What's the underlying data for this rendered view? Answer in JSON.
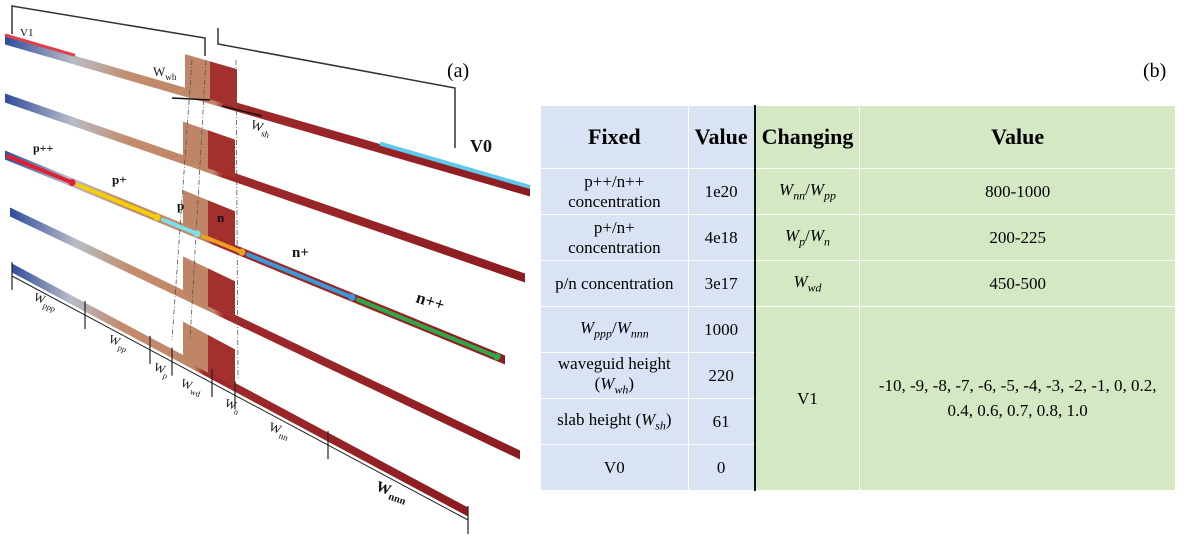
{
  "panel_a": {
    "label": "(a)",
    "labels": [
      "V1",
      {
        "base": "W",
        "sub": "wh"
      },
      {
        "base": "W",
        "sub": "sh"
      },
      "V0",
      "p++",
      "p+",
      "p",
      "n",
      "n+",
      "n++",
      {
        "base": "W",
        "sub": "ppp"
      },
      {
        "base": "W",
        "sub": "pp"
      },
      {
        "base": "W",
        "sub": "p"
      },
      {
        "base": "W",
        "sub": "wd"
      },
      {
        "base": "W",
        "sub": "n"
      },
      {
        "base": "W",
        "sub": "nn"
      },
      {
        "base": "W",
        "sub": "nnn"
      }
    ]
  },
  "panel_b": {
    "label": "(b)",
    "table": {
      "header": [
        "Fixed",
        "Value",
        "Changing",
        "Value"
      ],
      "fixed": [
        {
          "name": [
            "p++/n++ concentration"
          ],
          "value": "1e20"
        },
        {
          "name": [
            "p+/n+ concentration"
          ],
          "value": "4e18"
        },
        {
          "name": [
            "p/n concentration"
          ],
          "value": "3e17"
        },
        {
          "name": [
            {
              "base": "W",
              "sub": "ppp"
            },
            "/",
            {
              "base": "W",
              "sub": "nnn"
            }
          ],
          "value": "1000"
        },
        {
          "name": [
            "waveguid height (",
            {
              "base": "W",
              "sub": "wh"
            },
            ")"
          ],
          "value": "220"
        },
        {
          "name": [
            "slab height (",
            {
              "base": "W",
              "sub": "sh"
            },
            ")"
          ],
          "value": "61"
        },
        {
          "name": [
            "V0"
          ],
          "value": "0"
        }
      ],
      "changing": [
        {
          "name": [
            {
              "base": "W",
              "sub": "nn"
            },
            "/",
            {
              "base": "W",
              "sub": "pp"
            }
          ],
          "value": "800-1000"
        },
        {
          "name": [
            {
              "base": "W",
              "sub": "p"
            },
            "/",
            {
              "base": "W",
              "sub": "n"
            }
          ],
          "value": "200-225"
        },
        {
          "name": [
            {
              "base": "W",
              "sub": "wd"
            }
          ],
          "value": "450-500"
        },
        {
          "name": [
            "V1"
          ],
          "value": "-10, -9, -8, -7, -6, -5, -4, -3, -2, -1, 0, 0.2, 0.4, 0.6, 0.7, 0.8, 1.0"
        }
      ]
    }
  }
}
